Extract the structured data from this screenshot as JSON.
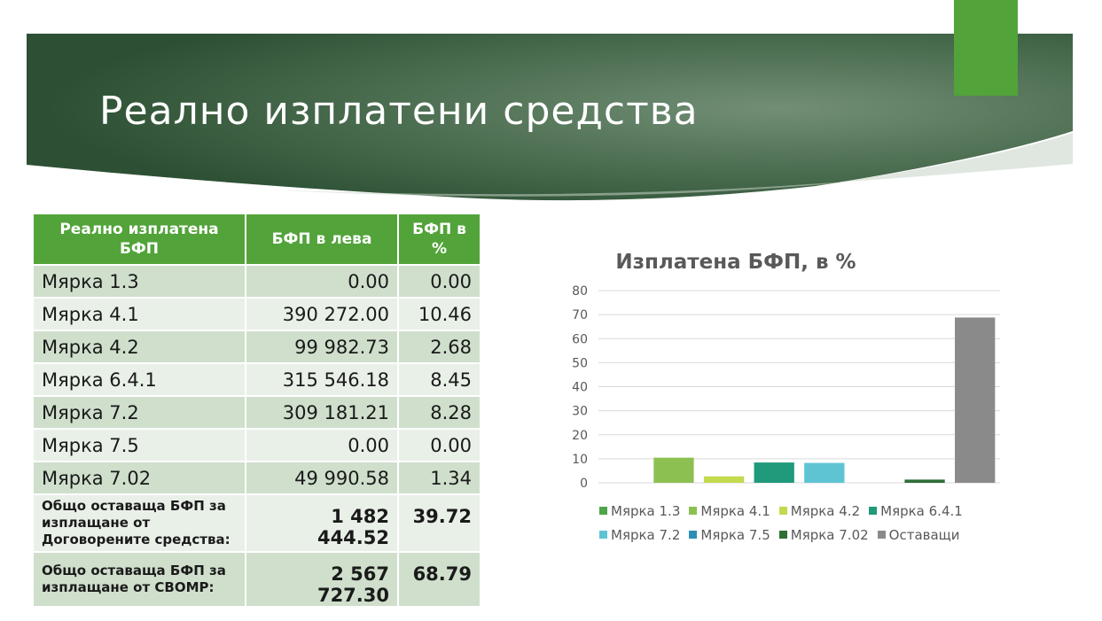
{
  "slide": {
    "title": "Реално изплатени средства",
    "colors": {
      "banner_dark": "#2f5236",
      "banner_light": "#6f8d73",
      "accent": "#52a33a"
    }
  },
  "table": {
    "headers": [
      "Реално изплатена БФП",
      "БФП в лева",
      "БФП в %"
    ],
    "rows": [
      {
        "label": "Мярка 1.3",
        "leva": "0.00",
        "pct": "0.00"
      },
      {
        "label": "Мярка 4.1",
        "leva": "390 272.00",
        "pct": "10.46"
      },
      {
        "label": "Мярка 4.2",
        "leva": "99 982.73",
        "pct": "2.68"
      },
      {
        "label": "Мярка 6.4.1",
        "leva": "315 546.18",
        "pct": "8.45"
      },
      {
        "label": "Мярка 7.2",
        "leva": "309 181.21",
        "pct": "8.28"
      },
      {
        "label": "Мярка 7.5",
        "leva": "0.00",
        "pct": "0.00"
      },
      {
        "label": "Мярка 7.02",
        "leva": "49 990.58",
        "pct": "1.34"
      }
    ],
    "totals": [
      {
        "label": "Общо оставаща БФП за изплащане от Договорените средства:",
        "leva": "1 482 444.52",
        "pct": "39.72"
      },
      {
        "label": "Общо оставаща БФП за изплащане от СВОМР:",
        "leva": "2 567 727.30",
        "pct": "68.79"
      }
    ]
  },
  "chart_data": {
    "type": "bar",
    "title": "Изплатена БФП, в %",
    "categories": [
      "Мярка 1.3",
      "Мярка 4.1",
      "Мярка 4.2",
      "Мярка 6.4.1",
      "Мярка 7.2",
      "Мярка 7.5",
      "Мярка 7.02",
      "Оставащи"
    ],
    "values": [
      0.0,
      10.46,
      2.68,
      8.45,
      8.28,
      0.0,
      1.34,
      68.79
    ],
    "colors": [
      "#4ea54a",
      "#8cc152",
      "#c3d94e",
      "#1f9a7a",
      "#5ec4d3",
      "#2a8fb3",
      "#2f6e36",
      "#8a8a8a"
    ],
    "yticks": [
      "0",
      "10",
      "20",
      "30",
      "40",
      "50",
      "60",
      "70",
      "80"
    ],
    "ylim": [
      0,
      80
    ],
    "grid": true,
    "legend": "bottom"
  }
}
